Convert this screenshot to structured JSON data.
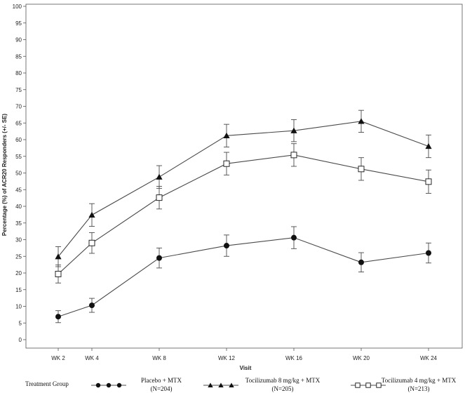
{
  "chart_data": {
    "type": "line",
    "categories": [
      "WK 2",
      "WK 4",
      "WK 8",
      "WK 12",
      "WK 16",
      "WK 20",
      "WK 24"
    ],
    "x_weeks": [
      2,
      4,
      8,
      12,
      16,
      20,
      24
    ],
    "xlabel": "Visit",
    "ylabel": "Percentage (%) of ACR20 Responders (+/- SE)",
    "ylim": [
      0,
      100
    ],
    "yticks": [
      0,
      5,
      10,
      15,
      20,
      25,
      30,
      35,
      40,
      45,
      50,
      55,
      60,
      65,
      70,
      75,
      80,
      85,
      90,
      95,
      100
    ],
    "grid": false,
    "legend_position": "bottom",
    "legend_title": "Treatment Group",
    "series": [
      {
        "name": "Placebo + MTX",
        "name_line2": "(N=204)",
        "marker": "circle-filled",
        "values": [
          6.9,
          10.3,
          24.5,
          28.2,
          30.6,
          23.2,
          26.0
        ],
        "se": [
          1.8,
          2.1,
          3.0,
          3.2,
          3.3,
          2.9,
          3.0
        ]
      },
      {
        "name": "Tocilizumab 8 mg/kg + MTX",
        "name_line2": "(N=205)",
        "marker": "triangle-filled",
        "values": [
          24.9,
          37.4,
          48.8,
          61.2,
          62.7,
          65.5,
          58.0
        ],
        "se": [
          3.0,
          3.4,
          3.4,
          3.4,
          3.3,
          3.3,
          3.4
        ]
      },
      {
        "name": "Tocilizumab 4 mg/kg + MTX",
        "name_line2": "(N=213)",
        "marker": "square-open",
        "values": [
          19.7,
          29.0,
          42.6,
          52.8,
          55.4,
          51.2,
          47.4
        ],
        "se": [
          2.7,
          3.1,
          3.4,
          3.4,
          3.4,
          3.4,
          3.5
        ]
      }
    ],
    "colors": {
      "line": "#4a4a4a",
      "marker": "#111111",
      "axis": "#555555"
    }
  }
}
